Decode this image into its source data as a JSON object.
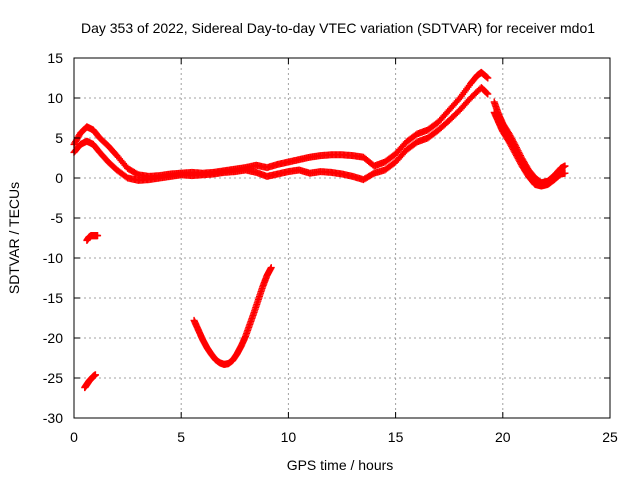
{
  "chart_data": {
    "type": "scatter",
    "title": "Day 353 of 2022, Sidereal Day-to-day VTEC variation (SDTVAR) for receiver mdo1",
    "xlabel": "GPS time / hours",
    "ylabel": "SDTVAR / TECUs",
    "xlim": [
      0,
      25
    ],
    "ylim": [
      -30,
      15
    ],
    "xticks": [
      0,
      5,
      10,
      15,
      20,
      25
    ],
    "yticks": [
      -30,
      -25,
      -20,
      -15,
      -10,
      -5,
      0,
      5,
      10,
      15
    ],
    "grid": true,
    "marker": "+",
    "color": "#ff0000",
    "series": [
      {
        "name": "main-upper",
        "x": [
          0.0,
          0.3,
          0.6,
          0.9,
          1.2,
          1.6,
          2.0,
          2.5,
          3.0,
          3.5,
          4.0,
          4.5,
          5.0,
          5.5,
          6.0,
          6.5,
          7.0,
          7.5,
          8.0,
          8.5,
          9.0,
          9.5,
          10.0,
          10.5,
          11.0,
          11.5,
          12.0,
          12.5,
          13.0,
          13.5,
          14.0,
          14.5,
          15.0,
          15.5,
          16.0,
          16.5,
          17.0,
          17.5,
          18.0,
          18.5,
          18.8,
          19.0,
          19.3
        ],
        "y": [
          4.2,
          5.6,
          6.4,
          6.0,
          5.0,
          4.0,
          2.8,
          1.2,
          0.4,
          0.2,
          0.3,
          0.5,
          0.6,
          0.7,
          0.6,
          0.7,
          0.9,
          1.1,
          1.3,
          1.6,
          1.3,
          1.7,
          2.0,
          2.3,
          2.6,
          2.8,
          2.9,
          2.9,
          2.8,
          2.6,
          1.5,
          2.0,
          3.0,
          4.5,
          5.5,
          6.0,
          7.0,
          8.5,
          10.0,
          11.8,
          12.8,
          13.2,
          12.5
        ]
      },
      {
        "name": "main-lower",
        "x": [
          0.0,
          0.3,
          0.6,
          0.9,
          1.2,
          1.6,
          2.0,
          2.5,
          3.0,
          3.5,
          4.0,
          4.5,
          5.0,
          5.5,
          6.0,
          6.5,
          7.0,
          7.5,
          8.0,
          8.5,
          9.0,
          9.5,
          10.0,
          10.5,
          11.0,
          11.5,
          12.0,
          12.5,
          13.0,
          13.5,
          14.0,
          14.5,
          15.0,
          15.5,
          16.0,
          16.5,
          17.0,
          17.5,
          18.0,
          18.5,
          19.0,
          19.3
        ],
        "y": [
          3.2,
          4.2,
          4.6,
          4.2,
          3.2,
          2.0,
          1.0,
          0.0,
          -0.3,
          -0.2,
          0.0,
          0.2,
          0.4,
          0.3,
          0.4,
          0.5,
          0.7,
          0.8,
          1.0,
          0.7,
          0.2,
          0.5,
          0.8,
          1.0,
          0.6,
          0.8,
          0.7,
          0.5,
          0.2,
          -0.2,
          0.6,
          1.0,
          2.0,
          3.5,
          4.5,
          5.0,
          6.0,
          7.2,
          8.5,
          10.0,
          11.3,
          10.5
        ]
      },
      {
        "name": "post-peak",
        "x": [
          19.6,
          19.8,
          20.0,
          20.3,
          20.6,
          20.9,
          21.2,
          21.5,
          21.8,
          22.1,
          22.4,
          22.7,
          22.9
        ],
        "y": [
          9.5,
          8.0,
          6.8,
          5.5,
          4.0,
          2.4,
          1.0,
          0.0,
          -0.6,
          -0.4,
          0.3,
          1.2,
          1.5
        ]
      },
      {
        "name": "post-peak-lower",
        "x": [
          19.6,
          19.8,
          20.0,
          20.3,
          20.6,
          20.9,
          21.2,
          21.5,
          21.8,
          22.1,
          22.4,
          22.7,
          22.9
        ],
        "y": [
          8.2,
          7.0,
          5.8,
          4.5,
          3.0,
          1.5,
          0.2,
          -0.8,
          -1.0,
          -0.8,
          -0.2,
          0.5,
          0.6
        ]
      },
      {
        "name": "segment-a",
        "x": [
          0.6,
          0.7,
          0.8,
          0.9,
          1.0,
          1.1
        ],
        "y": [
          -7.8,
          -7.4,
          -7.2,
          -7.2,
          -7.2,
          -7.2
        ]
      },
      {
        "name": "segment-b",
        "x": [
          0.5,
          0.6,
          0.7,
          0.8,
          0.9,
          1.0
        ],
        "y": [
          -26.2,
          -25.8,
          -25.4,
          -25.1,
          -24.8,
          -24.6
        ]
      },
      {
        "name": "segment-c",
        "x": [
          5.6,
          5.8,
          6.0,
          6.2,
          6.4,
          6.6,
          6.8,
          7.0,
          7.2,
          7.4,
          7.6,
          7.8,
          8.0,
          8.2,
          8.4,
          8.6,
          8.8,
          9.0,
          9.2
        ],
        "y": [
          -17.8,
          -19.0,
          -20.2,
          -21.2,
          -22.0,
          -22.7,
          -23.1,
          -23.3,
          -23.2,
          -22.8,
          -22.0,
          -21.0,
          -19.8,
          -18.3,
          -16.8,
          -15.2,
          -13.6,
          -12.2,
          -11.2
        ]
      }
    ]
  }
}
